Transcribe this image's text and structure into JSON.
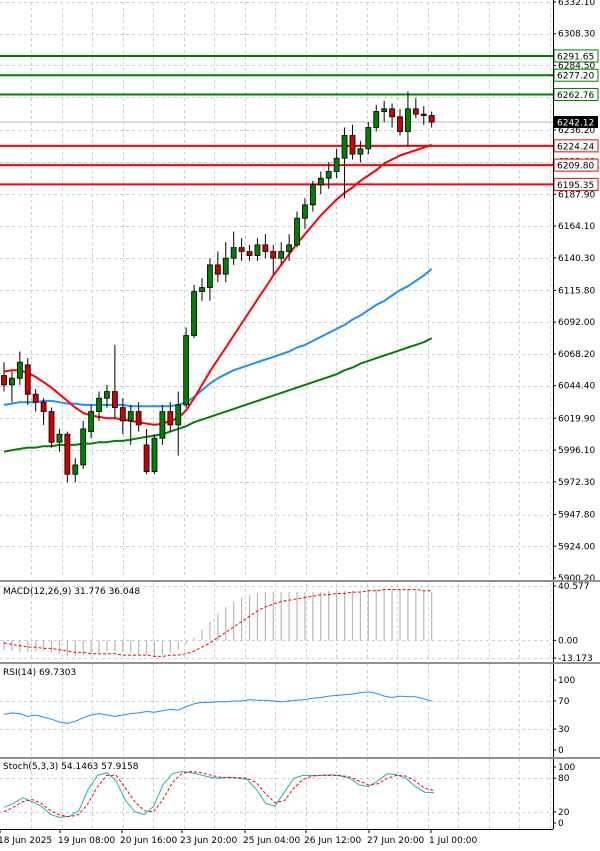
{
  "chart_data": [
    {
      "type": "candlestick",
      "panel": "price",
      "y_ticks": [
        "6332.10",
        "6308.30",
        "6284.50",
        "6260.70",
        "6236.20",
        "6212.40",
        "6187.90",
        "6164.10",
        "6140.30",
        "6115.80",
        "6092.00",
        "6068.20",
        "6044.40",
        "6019.90",
        "5996.10",
        "5972.30",
        "5947.80",
        "5924.00",
        "5900.20"
      ],
      "ylim": [
        5900.2,
        6332.1
      ],
      "x_labels": [
        "18 Jun 2025",
        "19 Jun 08:00",
        "20 Jun 16:00",
        "23 Jun 20:00",
        "25 Jun 04:00",
        "26 Jun 12:00",
        "27 Jun 20:00",
        "1 Jul 00:00"
      ],
      "candles": [
        {
          "o": 6052,
          "h": 6062,
          "l": 6040,
          "c": 6045
        },
        {
          "o": 6045,
          "h": 6055,
          "l": 6032,
          "c": 6050
        },
        {
          "o": 6050,
          "h": 6070,
          "l": 6045,
          "c": 6062
        },
        {
          "o": 6060,
          "h": 6065,
          "l": 6030,
          "c": 6038
        },
        {
          "o": 6038,
          "h": 6042,
          "l": 6025,
          "c": 6032
        },
        {
          "o": 6032,
          "h": 6035,
          "l": 6015,
          "c": 6025
        },
        {
          "o": 6025,
          "h": 6028,
          "l": 5998,
          "c": 6002
        },
        {
          "o": 6002,
          "h": 6012,
          "l": 5995,
          "c": 6008
        },
        {
          "o": 6008,
          "h": 6010,
          "l": 5972,
          "c": 5978
        },
        {
          "o": 5978,
          "h": 5990,
          "l": 5972,
          "c": 5985
        },
        {
          "o": 5985,
          "h": 6018,
          "l": 5982,
          "c": 6012
        },
        {
          "o": 6010,
          "h": 6030,
          "l": 6005,
          "c": 6025
        },
        {
          "o": 6025,
          "h": 6040,
          "l": 6018,
          "c": 6035
        },
        {
          "o": 6035,
          "h": 6045,
          "l": 6028,
          "c": 6040
        },
        {
          "o": 6040,
          "h": 6075,
          "l": 6020,
          "c": 6028
        },
        {
          "o": 6028,
          "h": 6035,
          "l": 6008,
          "c": 6018
        },
        {
          "o": 6018,
          "h": 6030,
          "l": 6000,
          "c": 6025
        },
        {
          "o": 6025,
          "h": 6032,
          "l": 6010,
          "c": 6015
        },
        {
          "o": 6000,
          "h": 6012,
          "l": 5978,
          "c": 5980
        },
        {
          "o": 5980,
          "h": 6008,
          "l": 5978,
          "c": 6005
        },
        {
          "o": 6005,
          "h": 6030,
          "l": 6000,
          "c": 6025
        },
        {
          "o": 6025,
          "h": 6032,
          "l": 6010,
          "c": 6015
        },
        {
          "o": 6015,
          "h": 6040,
          "l": 5992,
          "c": 6030
        },
        {
          "o": 6030,
          "h": 6088,
          "l": 6028,
          "c": 6082
        },
        {
          "o": 6082,
          "h": 6120,
          "l": 6080,
          "c": 6115
        },
        {
          "o": 6115,
          "h": 6125,
          "l": 6108,
          "c": 6118
        },
        {
          "o": 6118,
          "h": 6140,
          "l": 6108,
          "c": 6135
        },
        {
          "o": 6135,
          "h": 6145,
          "l": 6122,
          "c": 6128
        },
        {
          "o": 6128,
          "h": 6152,
          "l": 6122,
          "c": 6140
        },
        {
          "o": 6140,
          "h": 6160,
          "l": 6135,
          "c": 6148
        },
        {
          "o": 6148,
          "h": 6155,
          "l": 6138,
          "c": 6145
        },
        {
          "o": 6145,
          "h": 6150,
          "l": 6138,
          "c": 6142
        },
        {
          "o": 6142,
          "h": 6155,
          "l": 6138,
          "c": 6150
        },
        {
          "o": 6150,
          "h": 6158,
          "l": 6140,
          "c": 6145
        },
        {
          "o": 6145,
          "h": 6150,
          "l": 6128,
          "c": 6140
        },
        {
          "o": 6140,
          "h": 6152,
          "l": 6135,
          "c": 6145
        },
        {
          "o": 6145,
          "h": 6158,
          "l": 6138,
          "c": 6150
        },
        {
          "o": 6150,
          "h": 6175,
          "l": 6148,
          "c": 6170
        },
        {
          "o": 6170,
          "h": 6185,
          "l": 6162,
          "c": 6180
        },
        {
          "o": 6180,
          "h": 6198,
          "l": 6175,
          "c": 6195
        },
        {
          "o": 6195,
          "h": 6205,
          "l": 6188,
          "c": 6200
        },
        {
          "o": 6200,
          "h": 6212,
          "l": 6192,
          "c": 6205
        },
        {
          "o": 6205,
          "h": 6222,
          "l": 6200,
          "c": 6215
        },
        {
          "o": 6215,
          "h": 6238,
          "l": 6185,
          "c": 6232
        },
        {
          "o": 6232,
          "h": 6240,
          "l": 6214,
          "c": 6218
        },
        {
          "o": 6218,
          "h": 6228,
          "l": 6212,
          "c": 6222
        },
        {
          "o": 6222,
          "h": 6242,
          "l": 6218,
          "c": 6238
        },
        {
          "o": 6238,
          "h": 6255,
          "l": 6235,
          "c": 6250
        },
        {
          "o": 6250,
          "h": 6258,
          "l": 6242,
          "c": 6252
        },
        {
          "o": 6252,
          "h": 6256,
          "l": 6238,
          "c": 6246
        },
        {
          "o": 6246,
          "h": 6252,
          "l": 6232,
          "c": 6235
        },
        {
          "o": 6235,
          "h": 6265,
          "l": 6224,
          "c": 6252
        },
        {
          "o": 6252,
          "h": 6260,
          "l": 6245,
          "c": 6248
        },
        {
          "o": 6248,
          "h": 6254,
          "l": 6240,
          "c": 6247
        },
        {
          "o": 6247,
          "h": 6250,
          "l": 6238,
          "c": 6242
        }
      ],
      "ma_red": [
        6055,
        6056,
        6056,
        6054,
        6051,
        6047,
        6043,
        6038,
        6033,
        6028,
        6024,
        6022,
        6021,
        6020,
        6020,
        6019,
        6018,
        6017,
        6016,
        6015,
        6016,
        6018,
        6020,
        6026,
        6035,
        6045,
        6055,
        6064,
        6073,
        6082,
        6091,
        6100,
        6109,
        6118,
        6127,
        6135,
        6143,
        6151,
        6158,
        6165,
        6172,
        6178,
        6184,
        6189,
        6193,
        6198,
        6202,
        6206,
        6211,
        6214,
        6217,
        6219,
        6221,
        6223,
        6225
      ],
      "ma_blue": [
        6030,
        6031,
        6032,
        6032,
        6032,
        6033,
        6033,
        6032,
        6031,
        6031,
        6030,
        6030,
        6030,
        6030,
        6030,
        6030,
        6029,
        6029,
        6029,
        6029,
        6029,
        6029,
        6030,
        6032,
        6036,
        6041,
        6046,
        6050,
        6053,
        6056,
        6058,
        6060,
        6062,
        6064,
        6066,
        6068,
        6070,
        6073,
        6075,
        6078,
        6081,
        6084,
        6087,
        6090,
        6094,
        6097,
        6101,
        6105,
        6108,
        6112,
        6116,
        6119,
        6123,
        6127,
        6132
      ],
      "ma_green": [
        5995,
        5996,
        5997,
        5998,
        5998,
        5999,
        5999,
        6000,
        6000,
        6000,
        6001,
        6001,
        6002,
        6002,
        6003,
        6003,
        6004,
        6005,
        6006,
        6007,
        6008,
        6010,
        6012,
        6014,
        6017,
        6019,
        6021,
        6023,
        6025,
        6027,
        6029,
        6031,
        6033,
        6035,
        6037,
        6039,
        6041,
        6043,
        6045,
        6047,
        6049,
        6051,
        6053,
        6056,
        6058,
        6061,
        6063,
        6065,
        6067,
        6069,
        6071,
        6073,
        6075,
        6077,
        6080
      ],
      "levels": [
        {
          "value": 6291.65,
          "label": "6291.65",
          "color": "#008000"
        },
        {
          "value": 6277.2,
          "label": "6277.20",
          "color": "#008000"
        },
        {
          "value": 6262.76,
          "label": "6262.76",
          "color": "#008000"
        },
        {
          "value": 6224.24,
          "label": "6224.24",
          "color": "#ff0000"
        },
        {
          "value": 6209.8,
          "label": "6209.80",
          "color": "#ff0000"
        },
        {
          "value": 6195.35,
          "label": "6195.35",
          "color": "#ff0000"
        }
      ],
      "current_price": {
        "value": 6242.12,
        "label": "6242.12"
      }
    },
    {
      "type": "bar",
      "panel": "macd",
      "title": "MACD(12,26,9) 31.776 36.048",
      "y_ticks": [
        "40.577",
        "0.00",
        "-13.173"
      ],
      "ylim": [
        -13.173,
        40.577
      ],
      "histogram": [
        -7,
        -8,
        -9,
        -9,
        -8,
        -8,
        -9,
        -10,
        -12,
        -12,
        -11,
        -10,
        -9,
        -8,
        -8,
        -8,
        -9,
        -10,
        -11,
        -12,
        -11,
        -9,
        -7,
        -3,
        2,
        8,
        14,
        20,
        25,
        29,
        32,
        34,
        35,
        36,
        36,
        36,
        36,
        36,
        36,
        36,
        36,
        37,
        37,
        37,
        37,
        37,
        38,
        38,
        38,
        38,
        38,
        38,
        37,
        37,
        36
      ],
      "signal": [
        -2,
        -3,
        -4,
        -5,
        -5,
        -6,
        -6,
        -7,
        -8,
        -9,
        -9,
        -10,
        -10,
        -10,
        -10,
        -11,
        -11,
        -11,
        -11,
        -12,
        -12,
        -11,
        -11,
        -10,
        -8,
        -5,
        -2,
        2,
        6,
        10,
        14,
        18,
        22,
        25,
        27,
        29,
        30,
        31,
        32,
        33,
        34,
        34,
        35,
        35,
        36,
        36,
        37,
        37,
        38,
        38,
        38,
        38,
        38,
        37,
        37
      ]
    },
    {
      "type": "line",
      "panel": "rsi",
      "title": "RSI(14) 69.7303",
      "y_ticks": [
        "100",
        "70",
        "30",
        "0"
      ],
      "ylim": [
        0,
        100
      ],
      "values": [
        51,
        53,
        52,
        48,
        50,
        47,
        44,
        40,
        38,
        41,
        46,
        50,
        52,
        50,
        48,
        50,
        52,
        53,
        55,
        54,
        56,
        58,
        57,
        62,
        66,
        68,
        68,
        69,
        69,
        70,
        70,
        72,
        71,
        71,
        70,
        69,
        70,
        71,
        72,
        74,
        75,
        77,
        78,
        79,
        80,
        82,
        83,
        81,
        77,
        75,
        77,
        76,
        76,
        73,
        69.73
      ]
    },
    {
      "type": "line",
      "panel": "stoch",
      "title": "Stoch(5,3,3) 54.1463 57.9158",
      "y_ticks": [
        "100",
        "80",
        "20",
        "0"
      ],
      "ylim": [
        0,
        100
      ],
      "main": [
        28,
        35,
        45,
        38,
        30,
        15,
        10,
        12,
        22,
        60,
        85,
        90,
        75,
        40,
        20,
        15,
        30,
        68,
        88,
        92,
        90,
        86,
        82,
        80,
        82,
        80,
        78,
        60,
        35,
        30,
        55,
        80,
        85,
        85,
        85,
        86,
        84,
        80,
        68,
        65,
        75,
        88,
        86,
        80,
        65,
        55,
        54
      ],
      "signal": [
        20,
        28,
        38,
        42,
        35,
        22,
        14,
        11,
        15,
        35,
        65,
        85,
        85,
        62,
        38,
        22,
        20,
        42,
        72,
        88,
        92,
        90,
        86,
        82,
        81,
        81,
        80,
        72,
        52,
        36,
        40,
        62,
        78,
        84,
        85,
        85,
        85,
        82,
        75,
        68,
        70,
        80,
        85,
        84,
        75,
        62,
        57.92
      ]
    }
  ]
}
